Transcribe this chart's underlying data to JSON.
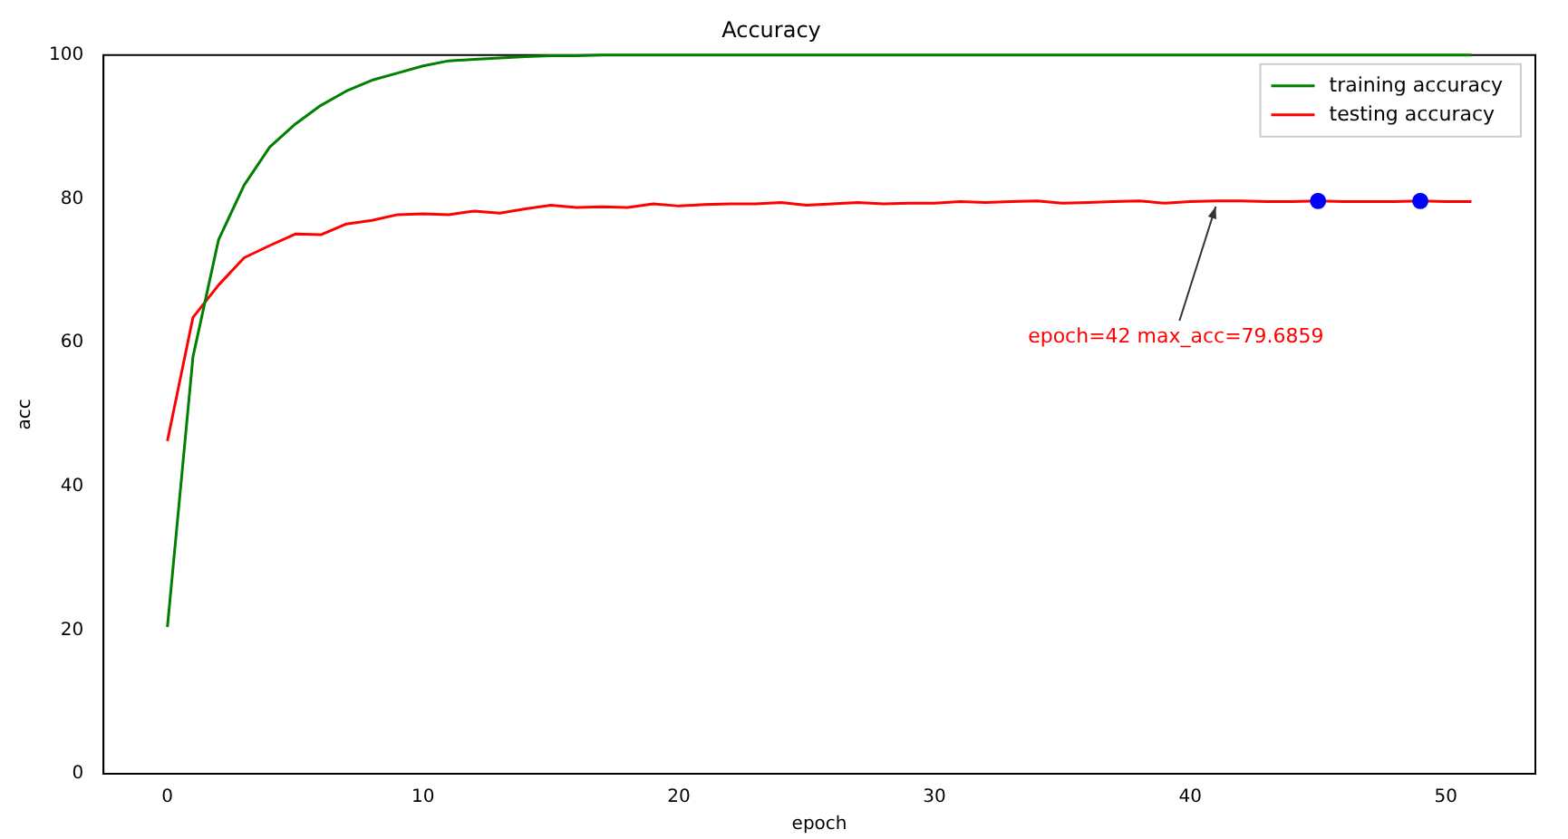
{
  "chart_data": {
    "type": "line",
    "title": "Accuracy",
    "xlabel": "epoch",
    "ylabel": "acc",
    "x": [
      0,
      1,
      2,
      3,
      4,
      5,
      6,
      7,
      8,
      9,
      10,
      11,
      12,
      13,
      14,
      15,
      16,
      17,
      18,
      19,
      20,
      21,
      22,
      23,
      24,
      25,
      26,
      27,
      28,
      29,
      30,
      31,
      32,
      33,
      34,
      35,
      36,
      37,
      38,
      39,
      40,
      41,
      42,
      43,
      44,
      45,
      46,
      47,
      48,
      49,
      50,
      51
    ],
    "series": [
      {
        "name": "training accuracy",
        "color": "#008000",
        "values": [
          20.4,
          58,
          74.3,
          81.9,
          87.2,
          90.4,
          93,
          95,
          96.5,
          97.5,
          98.5,
          99.2,
          99.4,
          99.6,
          99.8,
          99.9,
          99.9,
          100,
          100,
          100,
          100,
          100,
          100,
          100,
          100,
          100,
          100,
          100,
          100,
          100,
          100,
          100,
          100,
          100,
          100,
          100,
          100,
          100,
          100,
          100,
          100,
          100,
          100,
          100,
          100,
          100,
          100,
          100,
          100,
          100,
          100,
          100
        ]
      },
      {
        "name": "testing accuracy",
        "color": "#ff0000",
        "values": [
          46.3,
          63.5,
          68,
          71.8,
          73.5,
          75.1,
          75,
          76.5,
          77,
          77.8,
          77.9,
          77.8,
          78.3,
          78,
          78.6,
          79.1,
          78.8,
          78.9,
          78.8,
          79.3,
          79,
          79.2,
          79.3,
          79.3,
          79.5,
          79.1,
          79.3,
          79.5,
          79.3,
          79.4,
          79.4,
          79.6,
          79.5,
          79.6,
          79.7,
          79.4,
          79.5,
          79.6,
          79.7,
          79.4,
          79.6,
          79.7,
          79.7,
          79.6,
          79.6,
          79.7,
          79.6,
          79.6,
          79.6,
          79.7,
          79.6,
          79.6
        ]
      },
      {
        "type": "scatter",
        "color": "#0000ff",
        "marker": "circle",
        "x": [
          45,
          49
        ],
        "values": [
          79.7,
          79.7
        ]
      }
    ],
    "xlim": [
      -2.5,
      53.5
    ],
    "ylim": [
      0,
      100
    ],
    "xticks": [
      0,
      10,
      20,
      30,
      40,
      50
    ],
    "yticks": [
      0,
      20,
      40,
      60,
      80,
      100
    ],
    "grid": false,
    "legend": "top right",
    "marker": "none",
    "line_style": "solid",
    "annotations": [
      {
        "text": "epoch=42 max_acc=79.6859",
        "x": 41,
        "y": 79.6859
      }
    ]
  }
}
